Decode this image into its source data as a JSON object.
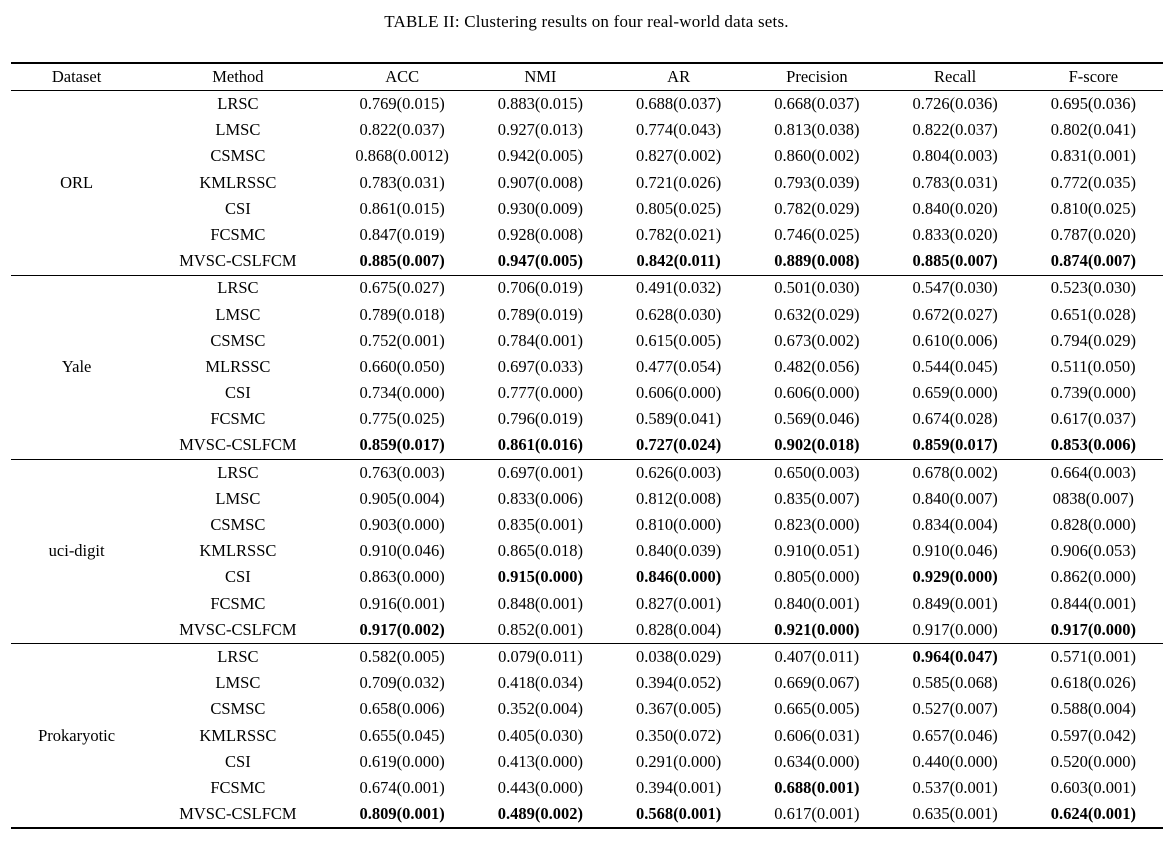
{
  "caption": "TABLE II: Clustering results on four real-world data sets.",
  "table": {
    "columns": [
      "Dataset",
      "Method",
      "ACC",
      "NMI",
      "AR",
      "Precision",
      "Recall",
      "F-score"
    ],
    "groups": [
      {
        "dataset": "ORL",
        "rows": [
          {
            "method": "LRSC",
            "values": [
              "0.769(0.015)",
              "0.883(0.015)",
              "0.688(0.037)",
              "0.668(0.037)",
              "0.726(0.036)",
              "0.695(0.036)"
            ],
            "bold": [
              false,
              false,
              false,
              false,
              false,
              false
            ]
          },
          {
            "method": "LMSC",
            "values": [
              "0.822(0.037)",
              "0.927(0.013)",
              "0.774(0.043)",
              "0.813(0.038)",
              "0.822(0.037)",
              "0.802(0.041)"
            ],
            "bold": [
              false,
              false,
              false,
              false,
              false,
              false
            ]
          },
          {
            "method": "CSMSC",
            "values": [
              "0.868(0.0012)",
              "0.942(0.005)",
              "0.827(0.002)",
              "0.860(0.002)",
              "0.804(0.003)",
              "0.831(0.001)"
            ],
            "bold": [
              false,
              false,
              false,
              false,
              false,
              false
            ]
          },
          {
            "method": "KMLRSSC",
            "values": [
              "0.783(0.031)",
              "0.907(0.008)",
              "0.721(0.026)",
              "0.793(0.039)",
              "0.783(0.031)",
              "0.772(0.035)"
            ],
            "bold": [
              false,
              false,
              false,
              false,
              false,
              false
            ]
          },
          {
            "method": "CSI",
            "values": [
              "0.861(0.015)",
              "0.930(0.009)",
              "0.805(0.025)",
              "0.782(0.029)",
              "0.840(0.020)",
              "0.810(0.025)"
            ],
            "bold": [
              false,
              false,
              false,
              false,
              false,
              false
            ]
          },
          {
            "method": "FCSMC",
            "values": [
              "0.847(0.019)",
              "0.928(0.008)",
              "0.782(0.021)",
              "0.746(0.025)",
              "0.833(0.020)",
              "0.787(0.020)"
            ],
            "bold": [
              false,
              false,
              false,
              false,
              false,
              false
            ]
          },
          {
            "method": "MVSC-CSLFCM",
            "values": [
              "0.885(0.007)",
              "0.947(0.005)",
              "0.842(0.011)",
              "0.889(0.008)",
              "0.885(0.007)",
              "0.874(0.007)"
            ],
            "bold": [
              true,
              true,
              true,
              true,
              true,
              true
            ]
          }
        ]
      },
      {
        "dataset": "Yale",
        "rows": [
          {
            "method": "LRSC",
            "values": [
              "0.675(0.027)",
              "0.706(0.019)",
              "0.491(0.032)",
              "0.501(0.030)",
              "0.547(0.030)",
              "0.523(0.030)"
            ],
            "bold": [
              false,
              false,
              false,
              false,
              false,
              false
            ]
          },
          {
            "method": "LMSC",
            "values": [
              "0.789(0.018)",
              "0.789(0.019)",
              "0.628(0.030)",
              "0.632(0.029)",
              "0.672(0.027)",
              "0.651(0.028)"
            ],
            "bold": [
              false,
              false,
              false,
              false,
              false,
              false
            ]
          },
          {
            "method": "CSMSC",
            "values": [
              "0.752(0.001)",
              "0.784(0.001)",
              "0.615(0.005)",
              "0.673(0.002)",
              "0.610(0.006)",
              "0.794(0.029)"
            ],
            "bold": [
              false,
              false,
              false,
              false,
              false,
              false
            ]
          },
          {
            "method": "MLRSSC",
            "values": [
              "0.660(0.050)",
              "0.697(0.033)",
              "0.477(0.054)",
              "0.482(0.056)",
              "0.544(0.045)",
              "0.511(0.050)"
            ],
            "bold": [
              false,
              false,
              false,
              false,
              false,
              false
            ]
          },
          {
            "method": "CSI",
            "values": [
              "0.734(0.000)",
              "0.777(0.000)",
              "0.606(0.000)",
              "0.606(0.000)",
              "0.659(0.000)",
              "0.739(0.000)"
            ],
            "bold": [
              false,
              false,
              false,
              false,
              false,
              false
            ]
          },
          {
            "method": "FCSMC",
            "values": [
              "0.775(0.025)",
              "0.796(0.019)",
              "0.589(0.041)",
              "0.569(0.046)",
              "0.674(0.028)",
              "0.617(0.037)"
            ],
            "bold": [
              false,
              false,
              false,
              false,
              false,
              false
            ]
          },
          {
            "method": "MVSC-CSLFCM",
            "values": [
              "0.859(0.017)",
              "0.861(0.016)",
              "0.727(0.024)",
              "0.902(0.018)",
              "0.859(0.017)",
              "0.853(0.006)"
            ],
            "bold": [
              true,
              true,
              true,
              true,
              true,
              true
            ]
          }
        ]
      },
      {
        "dataset": "uci-digit",
        "rows": [
          {
            "method": "LRSC",
            "values": [
              "0.763(0.003)",
              "0.697(0.001)",
              "0.626(0.003)",
              "0.650(0.003)",
              "0.678(0.002)",
              "0.664(0.003)"
            ],
            "bold": [
              false,
              false,
              false,
              false,
              false,
              false
            ]
          },
          {
            "method": "LMSC",
            "values": [
              "0.905(0.004)",
              "0.833(0.006)",
              "0.812(0.008)",
              "0.835(0.007)",
              "0.840(0.007)",
              "0838(0.007)"
            ],
            "bold": [
              false,
              false,
              false,
              false,
              false,
              false
            ]
          },
          {
            "method": "CSMSC",
            "values": [
              "0.903(0.000)",
              "0.835(0.001)",
              "0.810(0.000)",
              "0.823(0.000)",
              "0.834(0.004)",
              "0.828(0.000)"
            ],
            "bold": [
              false,
              false,
              false,
              false,
              false,
              false
            ]
          },
          {
            "method": "KMLRSSC",
            "values": [
              "0.910(0.046)",
              "0.865(0.018)",
              "0.840(0.039)",
              "0.910(0.051)",
              "0.910(0.046)",
              "0.906(0.053)"
            ],
            "bold": [
              false,
              false,
              false,
              false,
              false,
              false
            ]
          },
          {
            "method": "CSI",
            "values": [
              "0.863(0.000)",
              "0.915(0.000)",
              "0.846(0.000)",
              "0.805(0.000)",
              "0.929(0.000)",
              "0.862(0.000)"
            ],
            "bold": [
              false,
              true,
              true,
              false,
              true,
              false
            ]
          },
          {
            "method": "FCSMC",
            "values": [
              "0.916(0.001)",
              "0.848(0.001)",
              "0.827(0.001)",
              "0.840(0.001)",
              "0.849(0.001)",
              "0.844(0.001)"
            ],
            "bold": [
              false,
              false,
              false,
              false,
              false,
              false
            ]
          },
          {
            "method": "MVSC-CSLFCM",
            "values": [
              "0.917(0.002)",
              "0.852(0.001)",
              "0.828(0.004)",
              "0.921(0.000)",
              "0.917(0.000)",
              "0.917(0.000)"
            ],
            "bold": [
              true,
              false,
              false,
              true,
              false,
              true
            ]
          }
        ]
      },
      {
        "dataset": "Prokaryotic",
        "rows": [
          {
            "method": "LRSC",
            "values": [
              "0.582(0.005)",
              "0.079(0.011)",
              "0.038(0.029)",
              "0.407(0.011)",
              "0.964(0.047)",
              "0.571(0.001)"
            ],
            "bold": [
              false,
              false,
              false,
              false,
              true,
              false
            ]
          },
          {
            "method": "LMSC",
            "values": [
              "0.709(0.032)",
              "0.418(0.034)",
              "0.394(0.052)",
              "0.669(0.067)",
              "0.585(0.068)",
              "0.618(0.026)"
            ],
            "bold": [
              false,
              false,
              false,
              false,
              false,
              false
            ]
          },
          {
            "method": "CSMSC",
            "values": [
              "0.658(0.006)",
              "0.352(0.004)",
              "0.367(0.005)",
              "0.665(0.005)",
              "0.527(0.007)",
              "0.588(0.004)"
            ],
            "bold": [
              false,
              false,
              false,
              false,
              false,
              false
            ]
          },
          {
            "method": "KMLRSSC",
            "values": [
              "0.655(0.045)",
              "0.405(0.030)",
              "0.350(0.072)",
              "0.606(0.031)",
              "0.657(0.046)",
              "0.597(0.042)"
            ],
            "bold": [
              false,
              false,
              false,
              false,
              false,
              false
            ]
          },
          {
            "method": "CSI",
            "values": [
              "0.619(0.000)",
              "0.413(0.000)",
              "0.291(0.000)",
              "0.634(0.000)",
              "0.440(0.000)",
              "0.520(0.000)"
            ],
            "bold": [
              false,
              false,
              false,
              false,
              false,
              false
            ]
          },
          {
            "method": "FCSMC",
            "values": [
              "0.674(0.001)",
              "0.443(0.000)",
              "0.394(0.001)",
              "0.688(0.001)",
              "0.537(0.001)",
              "0.603(0.001)"
            ],
            "bold": [
              false,
              false,
              false,
              true,
              false,
              false
            ]
          },
          {
            "method": "MVSC-CSLFCM",
            "values": [
              "0.809(0.001)",
              "0.489(0.002)",
              "0.568(0.001)",
              "0.617(0.001)",
              "0.635(0.001)",
              "0.624(0.001)"
            ],
            "bold": [
              true,
              true,
              true,
              false,
              false,
              true
            ]
          }
        ]
      }
    ]
  }
}
